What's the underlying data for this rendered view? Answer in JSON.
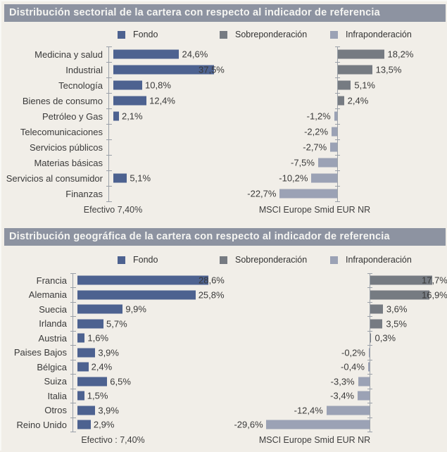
{
  "colors": {
    "fund": "#4d6290",
    "over": "#767b82",
    "under": "#9ba2b5",
    "titlebar": "#8d93a1",
    "background": "#f1eee8",
    "axis": "#9aa0a8"
  },
  "panels": [
    {
      "title": "Distribución sectorial de la cartera con respecto al indicador de referencia",
      "legend": [
        {
          "label": "Fondo",
          "color_key": "fund"
        },
        {
          "label": "Sobreponderación",
          "color_key": "over"
        },
        {
          "label": "Infraponderación",
          "color_key": "under"
        }
      ],
      "footer_left": "Efectivo 7,40%",
      "footer_right": "MSCI Europe Smid EUR NR"
    },
    {
      "title": "Distribución geográfica de la cartera con respecto al indicador de referencia",
      "legend": [
        {
          "label": "Fondo",
          "color_key": "fund"
        },
        {
          "label": "Sobreponderación",
          "color_key": "over"
        },
        {
          "label": "Infraponderación",
          "color_key": "under"
        }
      ],
      "footer_left": "Efectivo : 7,40%",
      "footer_right": "MSCI Europe Smid EUR NR"
    }
  ],
  "chart_data": [
    {
      "type": "bar",
      "orientation": "horizontal",
      "title": "Distribución sectorial de la cartera con respecto al indicador de referencia",
      "categories": [
        "Medicina y salud",
        "Industrial",
        "Tecnología",
        "Bienes de consumo",
        "Petróleo y Gas",
        "Telecomunicaciones",
        "Servicios públicos",
        "Materias básicas",
        "Servicios al consumidor",
        "Finanzas"
      ],
      "series": [
        {
          "name": "Fondo",
          "values": [
            24.6,
            37.5,
            10.8,
            12.4,
            2.1,
            null,
            null,
            null,
            5.1,
            null
          ]
        },
        {
          "name": "Sobreponderación / Infraponderación",
          "values": [
            18.2,
            13.5,
            5.1,
            2.4,
            -1.2,
            -2.2,
            -2.7,
            -7.5,
            -10.2,
            -22.7
          ]
        }
      ],
      "value_label_format": "decimal-comma-percent",
      "footnote_left": "Efectivo 7,40%",
      "footnote_right": "MSCI Europe Smid EUR NR",
      "legend_entries": [
        "Fondo",
        "Sobreponderación",
        "Infraponderación"
      ],
      "grid": false
    },
    {
      "type": "bar",
      "orientation": "horizontal",
      "title": "Distribución geográfica de la cartera con respecto al indicador de referencia",
      "categories": [
        "Francia",
        "Alemania",
        "Suecia",
        "Irlanda",
        "Austria",
        "Paises Bajos",
        "Bélgica",
        "Suiza",
        "Italia",
        "Otros",
        "Reino Unido"
      ],
      "series": [
        {
          "name": "Fondo",
          "values": [
            28.6,
            25.8,
            9.9,
            5.7,
            1.6,
            3.9,
            2.4,
            6.5,
            1.5,
            3.9,
            2.9
          ]
        },
        {
          "name": "Sobreponderación / Infraponderación",
          "values": [
            17.7,
            16.9,
            3.6,
            3.5,
            0.3,
            -0.2,
            -0.4,
            -3.3,
            -3.4,
            -12.4,
            -29.6
          ]
        }
      ],
      "value_label_format": "decimal-comma-percent",
      "footnote_left": "Efectivo : 7,40%",
      "footnote_right": "MSCI Europe Smid EUR NR",
      "legend_entries": [
        "Fondo",
        "Sobreponderación",
        "Infraponderación"
      ],
      "grid": false
    }
  ]
}
